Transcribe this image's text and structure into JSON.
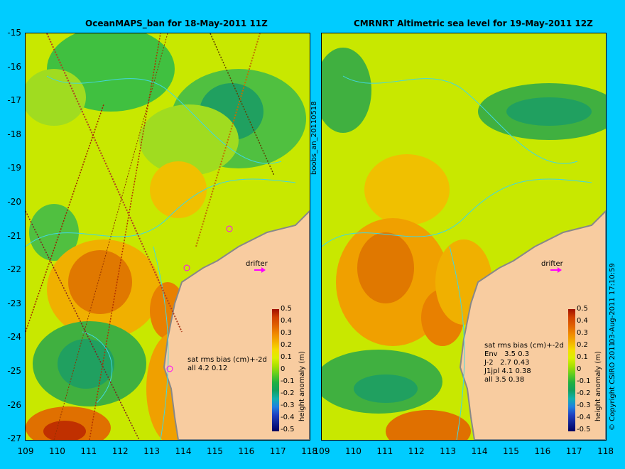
{
  "left_title": "OceanMAPS_ban for 18-May-2011 11Z",
  "right_title": "CMRNRT Altimetric sea level  for 19-May-2011 12Z",
  "y_ticks": [
    "-15",
    "-16",
    "-17",
    "-18",
    "-19",
    "-20",
    "-21",
    "-22",
    "-23",
    "-24",
    "-25",
    "-26",
    "-27"
  ],
  "x_ticks": [
    "109",
    "110",
    "111",
    "112",
    "113",
    "114",
    "115",
    "116",
    "117",
    "118"
  ],
  "right_x_ticks": [
    "109",
    "110",
    "111",
    "112",
    "113",
    "114",
    "115",
    "116",
    "117",
    "118"
  ],
  "left_stats": "sat rms bias (cm)+-2d\nall 4.2 0.12",
  "right_stats": "sat rms bias (cm)+-2d\nEnv   3.5 0.3\nJ-2   2.7 0.43\nJ1jpl 4.1 0.38\nall 3.5 0.38",
  "drifter_label": "drifter",
  "side_id": "boobs_an_20110518",
  "copyright": "© Copyright CSIRO 2011",
  "date_stamp": "03-Aug-2011 17:10:59",
  "colorbar": {
    "label": "height anomaly (m)",
    "ticks": [
      "0.5",
      "0.4",
      "0.3",
      "0.2",
      "0.1",
      "0",
      "-0.1",
      "-0.2",
      "-0.3",
      "-0.4",
      "-0.5"
    ],
    "colors": [
      "#a01000",
      "#d04000",
      "#e06000",
      "#f08800",
      "#f4b000",
      "#f4dc00",
      "#dcf000",
      "#a8e000",
      "#60cc20",
      "#20b040",
      "#10a060",
      "#10b0b0",
      "#2080e0",
      "#2040c0",
      "#102090",
      "#000060"
    ]
  },
  "colors": {
    "background": "#00ccff",
    "land": "#f8cca0",
    "contour": "#40d8e0",
    "drifter_arrow": "#ff00ff"
  }
}
